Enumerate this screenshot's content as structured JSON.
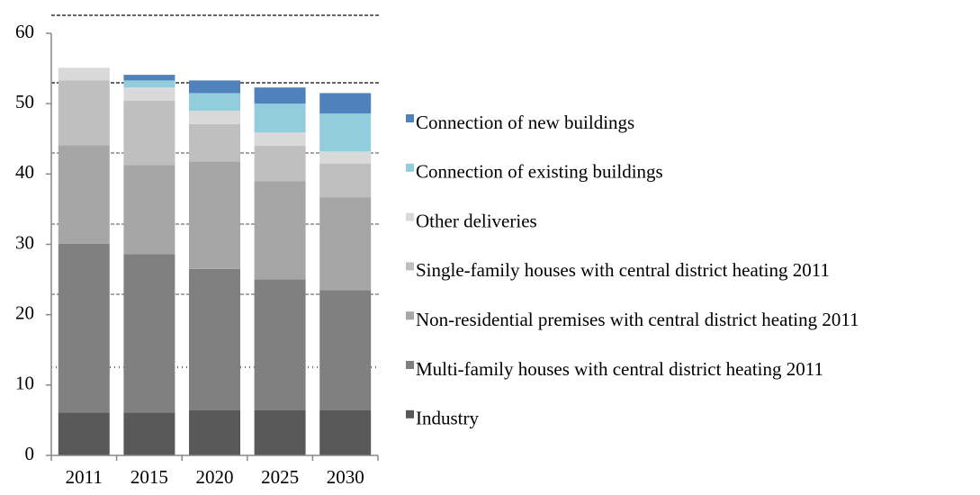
{
  "chart_data": {
    "type": "stacked_bar",
    "categories": [
      "2011",
      "2015",
      "2020",
      "2025",
      "2030"
    ],
    "series": [
      {
        "name": "Industry",
        "color": "#595959",
        "values": [
          6.1,
          6.1,
          6.4,
          6.4,
          6.4
        ]
      },
      {
        "name": "Multi-family houses with central district heating 2011",
        "color": "#808080",
        "values": [
          24.0,
          22.5,
          20.1,
          18.6,
          17.1
        ]
      },
      {
        "name": "Non-residential premises with central district heating 2011",
        "color": "#a6a6a6",
        "values": [
          14.0,
          12.7,
          15.3,
          14.0,
          13.2
        ]
      },
      {
        "name": "Single-family houses with central district heating 2011",
        "color": "#bfbfbf",
        "values": [
          9.2,
          9.1,
          5.3,
          5.0,
          4.8
        ]
      },
      {
        "name": "Other deliveries",
        "color": "#d9d9d9",
        "values": [
          1.8,
          1.9,
          1.9,
          1.9,
          1.7
        ]
      },
      {
        "name": "Connection of existing buildings",
        "color": "#92cddc",
        "values": [
          0,
          1.0,
          2.5,
          4.1,
          5.4
        ]
      },
      {
        "name": "Connection of new buildings",
        "color": "#4f81bd",
        "values": [
          0,
          0.8,
          1.8,
          2.3,
          2.9
        ]
      }
    ],
    "ylim": [
      0,
      60
    ],
    "yticks": [
      0,
      10,
      20,
      30,
      40,
      50,
      60
    ]
  }
}
